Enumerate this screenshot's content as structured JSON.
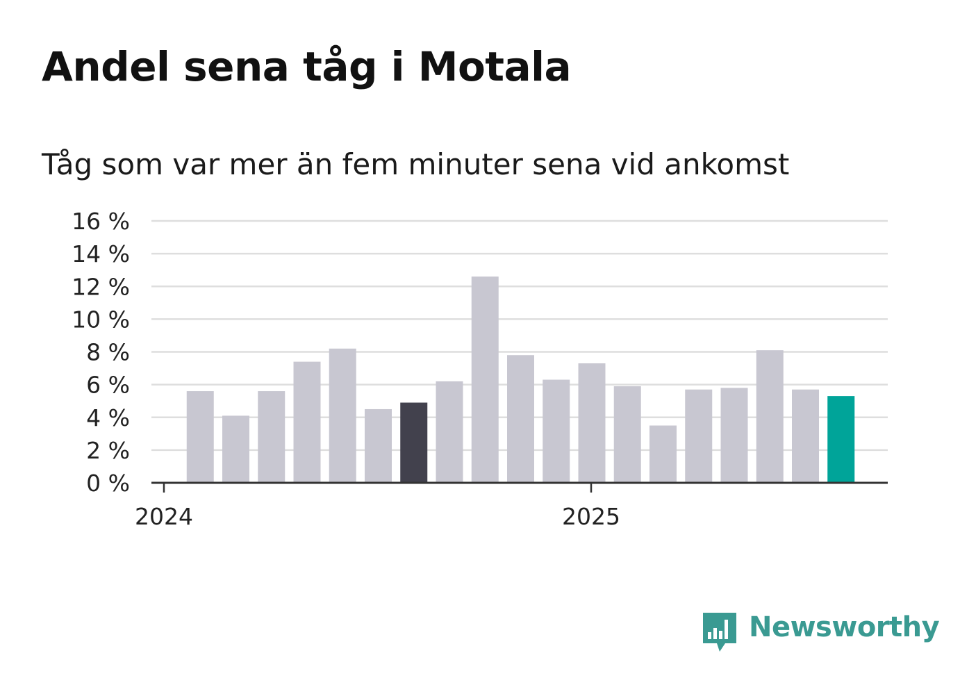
{
  "header": {
    "title": "Andel sena tåg i Motala",
    "subtitle": "Tåg som var mer än fem minuter sena vid ankomst"
  },
  "brand": {
    "name": "Newsworthy",
    "icon": "newsworthy-logo-icon",
    "color": "#3a9a92"
  },
  "chart_data": {
    "type": "bar",
    "title": "Andel sena tåg i Motala",
    "subtitle": "Tåg som var mer än fem minuter sena vid ankomst",
    "x": [
      "2024-02",
      "2024-03",
      "2024-04",
      "2024-05",
      "2024-06",
      "2024-07",
      "2024-08",
      "2024-09",
      "2024-10",
      "2024-11",
      "2024-12",
      "2025-01",
      "2025-02",
      "2025-03",
      "2025-04",
      "2025-05",
      "2025-06",
      "2025-07",
      "2025-08"
    ],
    "values": [
      5.6,
      4.1,
      5.6,
      7.4,
      8.2,
      4.5,
      4.9,
      6.2,
      12.6,
      7.8,
      6.3,
      7.3,
      5.9,
      3.5,
      5.7,
      5.8,
      8.1,
      5.7,
      5.3
    ],
    "value_unit": "%",
    "ylim": [
      0,
      16
    ],
    "y_ticks": [
      0,
      2,
      4,
      6,
      8,
      10,
      12,
      14,
      16
    ],
    "y_tick_labels": [
      "0 %",
      "2 %",
      "4 %",
      "6 %",
      "8 %",
      "10 %",
      "12 %",
      "14 %",
      "16 %"
    ],
    "x_tick_positions": [
      "2024-01",
      "2025-01"
    ],
    "x_tick_labels": [
      "2024",
      "2025"
    ],
    "grid": true,
    "bar_color": "#c8c7d1",
    "highlights": [
      {
        "x": "2024-08",
        "color": "#42414d"
      },
      {
        "x": "2025-08",
        "color": "#00a499"
      }
    ]
  }
}
